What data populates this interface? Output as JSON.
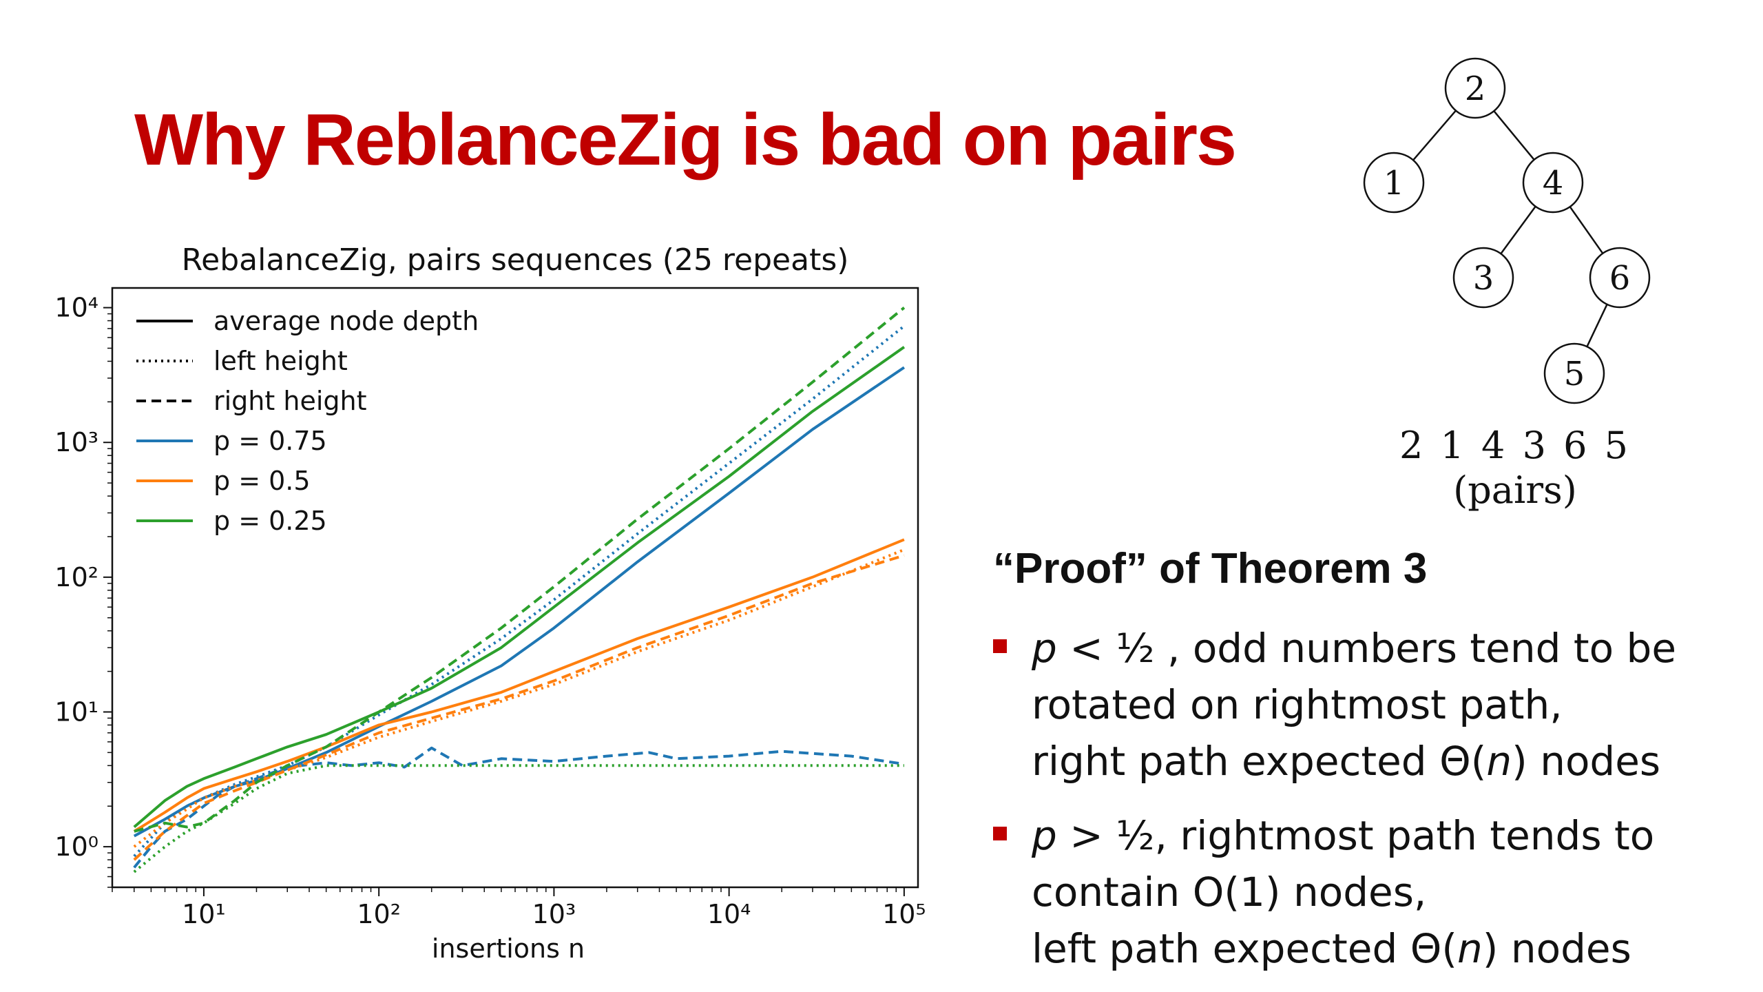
{
  "slide": {
    "title": "Why ReblanceZig is bad on pairs"
  },
  "tree": {
    "nodes": [
      {
        "id": "n2",
        "label": "2"
      },
      {
        "id": "n1",
        "label": "1"
      },
      {
        "id": "n4",
        "label": "4"
      },
      {
        "id": "n3",
        "label": "3"
      },
      {
        "id": "n6",
        "label": "6"
      },
      {
        "id": "n5",
        "label": "5"
      }
    ],
    "edges": [
      [
        "n2",
        "n1"
      ],
      [
        "n2",
        "n4"
      ],
      [
        "n4",
        "n3"
      ],
      [
        "n4",
        "n6"
      ],
      [
        "n6",
        "n5"
      ]
    ],
    "sequence": "2 1 4 3 6 5",
    "caption": "(pairs)"
  },
  "proof": {
    "heading": "“Proof” of Theorem 3",
    "bullets": [
      {
        "segments": [
          {
            "text": "p",
            "italic": true
          },
          {
            "text": " < ½ , odd numbers tend to be",
            "italic": false
          }
        ],
        "lines": [
          "rotated on rightmost path,"
        ],
        "last": [
          {
            "text": "right path expected Θ(",
            "italic": false
          },
          {
            "text": "n",
            "italic": true
          },
          {
            "text": ") nodes",
            "italic": false
          }
        ]
      },
      {
        "segments": [
          {
            "text": "p",
            "italic": true
          },
          {
            "text": " > ½, rightmost path tends to",
            "italic": false
          }
        ],
        "lines": [
          "contain O(1) nodes,"
        ],
        "last": [
          {
            "text": "left path expected Θ(",
            "italic": false
          },
          {
            "text": "n",
            "italic": true
          },
          {
            "text": ") nodes",
            "italic": false
          }
        ]
      }
    ]
  },
  "chart_data": {
    "type": "line",
    "title": "RebalanceZig, pairs sequences (25 repeats)",
    "xlabel": "insertions n",
    "ylabel": "",
    "xscale": "log",
    "yscale": "log",
    "xlim": [
      3,
      120000
    ],
    "ylim": [
      0.5,
      14000
    ],
    "x_ticks": [
      10,
      100,
      1000,
      10000,
      100000
    ],
    "x_tick_labels": [
      "10¹",
      "10²",
      "10³",
      "10⁴",
      "10⁵"
    ],
    "y_ticks": [
      1,
      10,
      100,
      1000,
      10000
    ],
    "y_tick_labels": [
      "10⁰",
      "10¹",
      "10²",
      "10³",
      "10⁴"
    ],
    "grid": false,
    "legend_position": "top-left",
    "legend": [
      {
        "label": "average node depth",
        "style": "solid",
        "color": "#000000"
      },
      {
        "label": "left height",
        "style": "dotted",
        "color": "#000000"
      },
      {
        "label": "right height",
        "style": "dashed",
        "color": "#000000"
      },
      {
        "label": "p = 0.75",
        "style": "solid",
        "color": "#1f77b4"
      },
      {
        "label": "p = 0.5",
        "style": "solid",
        "color": "#ff7f0e"
      },
      {
        "label": "p = 0.25",
        "style": "solid",
        "color": "#2ca02c"
      }
    ],
    "series": [
      {
        "name": "p = 0.75",
        "metric": "average node depth",
        "style": "solid",
        "color": "#1f77b4",
        "points": [
          [
            4,
            1.2
          ],
          [
            6,
            1.6
          ],
          [
            8,
            2.0
          ],
          [
            10,
            2.3
          ],
          [
            15,
            2.8
          ],
          [
            20,
            3.1
          ],
          [
            30,
            3.8
          ],
          [
            50,
            5.0
          ],
          [
            100,
            7.8
          ],
          [
            200,
            12
          ],
          [
            500,
            22
          ],
          [
            1000,
            42
          ],
          [
            3000,
            130
          ],
          [
            10000,
            420
          ],
          [
            30000,
            1250
          ],
          [
            100000,
            3600
          ]
        ]
      },
      {
        "name": "p = 0.75",
        "metric": "left height",
        "style": "dotted",
        "color": "#1f77b4",
        "points": [
          [
            4,
            0.85
          ],
          [
            6,
            1.5
          ],
          [
            8,
            2.0
          ],
          [
            10,
            2.3
          ],
          [
            15,
            2.9
          ],
          [
            20,
            3.3
          ],
          [
            30,
            4.0
          ],
          [
            50,
            5.5
          ],
          [
            100,
            9.5
          ],
          [
            200,
            16
          ],
          [
            500,
            35
          ],
          [
            1000,
            68
          ],
          [
            3000,
            210
          ],
          [
            10000,
            700
          ],
          [
            30000,
            2100
          ],
          [
            100000,
            7300
          ]
        ]
      },
      {
        "name": "p = 0.75",
        "metric": "right height",
        "style": "dashed",
        "color": "#1f77b4",
        "points": [
          [
            4,
            0.7
          ],
          [
            5,
            1.0
          ],
          [
            6,
            1.3
          ],
          [
            8,
            1.6
          ],
          [
            10,
            2.0
          ],
          [
            12,
            2.4
          ],
          [
            15,
            2.8
          ],
          [
            20,
            3.2
          ],
          [
            30,
            3.9
          ],
          [
            50,
            4.2
          ],
          [
            70,
            4.0
          ],
          [
            100,
            4.2
          ],
          [
            140,
            3.9
          ],
          [
            200,
            5.4
          ],
          [
            300,
            4.0
          ],
          [
            500,
            4.5
          ],
          [
            1000,
            4.3
          ],
          [
            2000,
            4.7
          ],
          [
            3500,
            5.0
          ],
          [
            5000,
            4.5
          ],
          [
            10000,
            4.7
          ],
          [
            20000,
            5.1
          ],
          [
            50000,
            4.7
          ],
          [
            100000,
            4.1
          ]
        ]
      },
      {
        "name": "p = 0.5",
        "metric": "average node depth",
        "style": "solid",
        "color": "#ff7f0e",
        "points": [
          [
            4,
            1.3
          ],
          [
            6,
            1.8
          ],
          [
            8,
            2.3
          ],
          [
            10,
            2.7
          ],
          [
            15,
            3.2
          ],
          [
            20,
            3.6
          ],
          [
            30,
            4.3
          ],
          [
            50,
            5.5
          ],
          [
            100,
            8.0
          ],
          [
            200,
            10
          ],
          [
            500,
            14
          ],
          [
            1000,
            20
          ],
          [
            3000,
            35
          ],
          [
            10000,
            60
          ],
          [
            30000,
            100
          ],
          [
            100000,
            190
          ]
        ]
      },
      {
        "name": "p = 0.5",
        "metric": "left height",
        "style": "dotted",
        "color": "#ff7f0e",
        "points": [
          [
            4,
            1.0
          ],
          [
            6,
            1.5
          ],
          [
            8,
            1.9
          ],
          [
            10,
            2.3
          ],
          [
            15,
            2.8
          ],
          [
            20,
            3.1
          ],
          [
            30,
            3.7
          ],
          [
            50,
            4.6
          ],
          [
            100,
            6.5
          ],
          [
            200,
            8.5
          ],
          [
            500,
            12
          ],
          [
            1000,
            16
          ],
          [
            3000,
            28
          ],
          [
            10000,
            48
          ],
          [
            30000,
            85
          ],
          [
            100000,
            160
          ]
        ]
      },
      {
        "name": "p = 0.5",
        "metric": "right height",
        "style": "dashed",
        "color": "#ff7f0e",
        "points": [
          [
            4,
            0.8
          ],
          [
            6,
            1.3
          ],
          [
            8,
            1.7
          ],
          [
            10,
            2.1
          ],
          [
            15,
            2.6
          ],
          [
            20,
            3.0
          ],
          [
            30,
            3.7
          ],
          [
            50,
            4.8
          ],
          [
            100,
            7.0
          ],
          [
            200,
            9.0
          ],
          [
            500,
            12.5
          ],
          [
            1000,
            17
          ],
          [
            3000,
            30
          ],
          [
            10000,
            52
          ],
          [
            30000,
            90
          ],
          [
            100000,
            145
          ]
        ]
      },
      {
        "name": "p = 0.25",
        "metric": "average node depth",
        "style": "solid",
        "color": "#2ca02c",
        "points": [
          [
            4,
            1.4
          ],
          [
            6,
            2.2
          ],
          [
            8,
            2.8
          ],
          [
            10,
            3.2
          ],
          [
            15,
            3.9
          ],
          [
            20,
            4.5
          ],
          [
            30,
            5.5
          ],
          [
            50,
            6.8
          ],
          [
            100,
            10
          ],
          [
            200,
            15
          ],
          [
            500,
            30
          ],
          [
            1000,
            60
          ],
          [
            3000,
            180
          ],
          [
            10000,
            560
          ],
          [
            30000,
            1700
          ],
          [
            100000,
            5100
          ]
        ]
      },
      {
        "name": "p = 0.25",
        "metric": "left height",
        "style": "dotted",
        "color": "#2ca02c",
        "points": [
          [
            4,
            0.65
          ],
          [
            6,
            1.0
          ],
          [
            8,
            1.3
          ],
          [
            10,
            1.5
          ],
          [
            15,
            2.1
          ],
          [
            20,
            2.7
          ],
          [
            30,
            3.5
          ],
          [
            50,
            4.0
          ],
          [
            100,
            4.0
          ],
          [
            200,
            4.0
          ],
          [
            500,
            4.0
          ],
          [
            1000,
            4.0
          ],
          [
            3000,
            4.0
          ],
          [
            10000,
            4.0
          ],
          [
            30000,
            4.0
          ],
          [
            100000,
            4.0
          ]
        ]
      },
      {
        "name": "p = 0.25",
        "metric": "right height",
        "style": "dashed",
        "color": "#2ca02c",
        "points": [
          [
            4,
            1.3
          ],
          [
            6,
            1.5
          ],
          [
            8,
            1.4
          ],
          [
            10,
            1.5
          ],
          [
            15,
            2.2
          ],
          [
            20,
            3.0
          ],
          [
            30,
            4.0
          ],
          [
            50,
            5.5
          ],
          [
            100,
            10
          ],
          [
            200,
            18
          ],
          [
            500,
            42
          ],
          [
            1000,
            85
          ],
          [
            3000,
            270
          ],
          [
            10000,
            900
          ],
          [
            30000,
            2800
          ],
          [
            100000,
            10000
          ]
        ]
      }
    ]
  }
}
